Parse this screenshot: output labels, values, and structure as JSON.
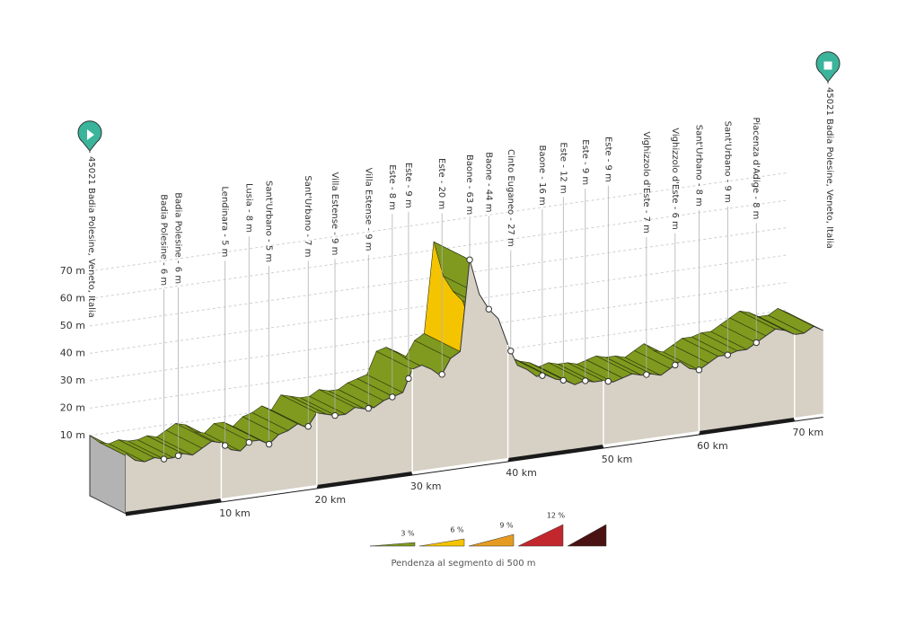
{
  "chart_data": {
    "type": "elevation",
    "start_label": "45021 Badia Polesine, Veneto, Italia",
    "end_label": "45021 Badia Polesine, Veneto, Italia",
    "x": [
      0,
      1,
      2,
      3,
      4,
      5,
      6,
      7,
      8,
      9,
      10,
      11,
      12,
      13,
      14,
      15,
      16,
      17,
      18,
      19,
      20,
      21,
      22,
      23,
      24,
      25,
      26,
      27,
      28,
      29,
      30,
      31,
      32,
      33,
      34,
      35,
      36,
      37,
      38,
      39,
      40,
      41,
      42,
      43,
      44,
      45,
      46,
      47,
      48,
      49,
      50,
      51,
      52,
      53,
      54,
      55,
      56,
      57,
      58,
      59,
      60,
      61,
      62,
      63,
      64,
      65,
      66,
      67,
      68,
      69,
      70,
      71,
      72,
      73
    ],
    "values": [
      10,
      7,
      6,
      7,
      6,
      6,
      7,
      6,
      8,
      10,
      9,
      6,
      5,
      8,
      8,
      6,
      9,
      10,
      12,
      10,
      15,
      14,
      13,
      13,
      15,
      14,
      14,
      16,
      17,
      18,
      26,
      27,
      25,
      22,
      28,
      30,
      63,
      50,
      44,
      40,
      30,
      22,
      20,
      17,
      17,
      15,
      14,
      12,
      13,
      12,
      12,
      11,
      12,
      13,
      12,
      12,
      11,
      13,
      15,
      12,
      11,
      13,
      15,
      15,
      16,
      16,
      18,
      20,
      22,
      21,
      19,
      19,
      21,
      19
    ],
    "xlim": [
      0,
      73
    ],
    "ylim": [
      -12,
      75
    ],
    "xticks": [
      {
        "value": 10,
        "label": "10 km"
      },
      {
        "value": 20,
        "label": "20 km"
      },
      {
        "value": 30,
        "label": "30 km"
      },
      {
        "value": 40,
        "label": "40 km"
      },
      {
        "value": 50,
        "label": "50 km"
      },
      {
        "value": 60,
        "label": "60 km"
      },
      {
        "value": 70,
        "label": "70 km"
      }
    ],
    "yticks": [
      {
        "value": 10,
        "label": "10 m"
      },
      {
        "value": 20,
        "label": "20 m"
      },
      {
        "value": 30,
        "label": "30 m"
      },
      {
        "value": 40,
        "label": "40 m"
      },
      {
        "value": 50,
        "label": "50 m"
      },
      {
        "value": 60,
        "label": "60 m"
      },
      {
        "value": 70,
        "label": "70 m"
      }
    ],
    "waypoints": [
      {
        "label": "Badia Polesine - 6 m",
        "km": 4.0
      },
      {
        "label": "Badia Polesine - 6 m",
        "km": 5.5
      },
      {
        "label": "Lendinara - 5 m",
        "km": 10.4
      },
      {
        "label": "Lusia - 8 m",
        "km": 12.9
      },
      {
        "label": "Sant'Urbano - 5 m",
        "km": 15.0
      },
      {
        "label": "Sant'Urbano - 7 m",
        "km": 19.1
      },
      {
        "label": "Villa Estense - 9 m",
        "km": 21.9
      },
      {
        "label": "Villa Estense - 9 m",
        "km": 25.4
      },
      {
        "label": "Este - 8 m",
        "km": 27.9
      },
      {
        "label": "Este - 9 m",
        "km": 29.6
      },
      {
        "label": "Este - 20 m",
        "km": 33.1
      },
      {
        "label": "Baone - 63 m",
        "km": 36.0
      },
      {
        "label": "Baone - 44 m",
        "km": 38.0
      },
      {
        "label": "Cinto Euganeo - 27 m",
        "km": 40.3
      },
      {
        "label": "Baone - 16 m",
        "km": 43.6
      },
      {
        "label": "Este - 12 m",
        "km": 45.8
      },
      {
        "label": "Este - 9 m",
        "km": 48.1
      },
      {
        "label": "Este - 9 m",
        "km": 50.5
      },
      {
        "label": "Vighizzolo d'Este - 7 m",
        "km": 54.5
      },
      {
        "label": "Vighizzolo d'Este - 6 m",
        "km": 57.5
      },
      {
        "label": "Sant'Urbano - 8 m",
        "km": 60.0
      },
      {
        "label": "Sant'Urbano - 9 m",
        "km": 63.0
      },
      {
        "label": "Piacenza d'Adige - 8 m",
        "km": 66.0
      }
    ],
    "grade_legend": {
      "title": "Pendenza al segmento di 500 m",
      "items": [
        {
          "value": 3,
          "label": "3 %",
          "color": "#7f9a1e"
        },
        {
          "value": 6,
          "label": "6 %",
          "color": "#f5c400"
        },
        {
          "value": 9,
          "label": "9 %",
          "color": "#e59b22"
        },
        {
          "value": 12,
          "label": "12 %",
          "color": "#c1272d"
        }
      ],
      "last_color": "#4a1212"
    },
    "face_color": "#d6d0c5",
    "wall_color": "#b3b3b3",
    "pin_color": "#3ab49a"
  }
}
